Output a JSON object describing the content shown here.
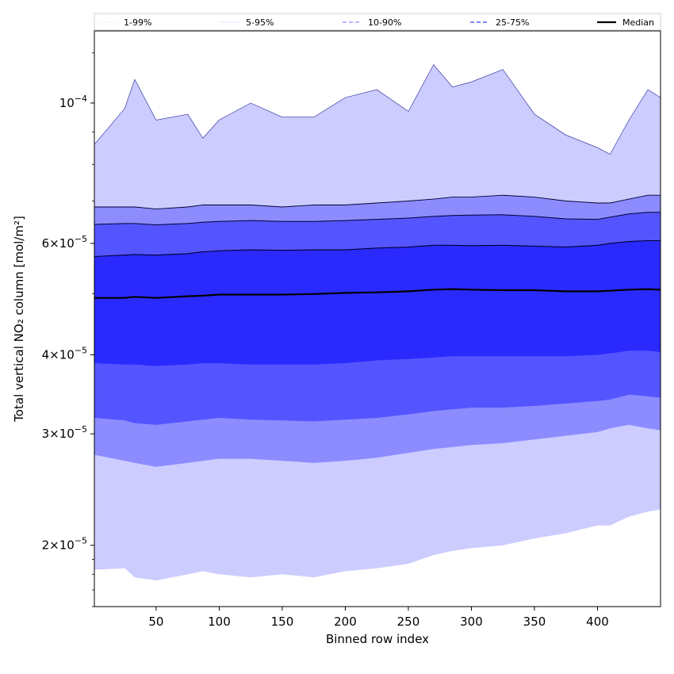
{
  "chart_data": {
    "type": "area",
    "xlabel": "Binned row index",
    "ylabel": "Total vertical NO₂ column [mol/m²]",
    "y_scale": "log",
    "xlim": [
      1,
      450
    ],
    "ylim": [
      1.6e-05,
      0.00013
    ],
    "x_ticks": [
      50,
      100,
      150,
      200,
      250,
      300,
      350,
      400
    ],
    "x_tick_labels": [
      "50",
      "100",
      "150",
      "200",
      "250",
      "300",
      "350",
      "400"
    ],
    "y_ticks": [
      {
        "value": 0.0001,
        "mantissa": "",
        "exponent": "−4"
      },
      {
        "value": 6e-05,
        "mantissa": "6",
        "exponent": "−5"
      },
      {
        "value": 4e-05,
        "mantissa": "4",
        "exponent": "−5"
      },
      {
        "value": 3e-05,
        "mantissa": "3",
        "exponent": "−5"
      },
      {
        "value": 2e-05,
        "mantissa": "2",
        "exponent": "−5"
      }
    ],
    "grid": false,
    "legend_position": "top",
    "legend": [
      {
        "label": "1-99%",
        "color": "#d8d8ff",
        "style": "dotted"
      },
      {
        "label": "5-95%",
        "color": "#b4b4ff",
        "style": "dotted"
      },
      {
        "label": "10-90%",
        "color": "#8c8cff",
        "style": "dashed"
      },
      {
        "label": "25-75%",
        "color": "#5a5aff",
        "style": "dashed"
      },
      {
        "label": "Median",
        "color": "#000000",
        "style": "solid"
      }
    ],
    "x": [
      1,
      25,
      33,
      50,
      75,
      87,
      100,
      125,
      150,
      175,
      200,
      225,
      250,
      270,
      285,
      300,
      325,
      350,
      375,
      400,
      410,
      425,
      440,
      450
    ],
    "bands": [
      {
        "name": "1-99%",
        "color": "#ccccff",
        "lower": [
          1.83e-05,
          1.84e-05,
          1.78e-05,
          1.76e-05,
          1.8e-05,
          1.82e-05,
          1.8e-05,
          1.78e-05,
          1.8e-05,
          1.78e-05,
          1.82e-05,
          1.84e-05,
          1.87e-05,
          1.93e-05,
          1.96e-05,
          1.98e-05,
          2e-05,
          2.05e-05,
          2.09e-05,
          2.15e-05,
          2.15e-05,
          2.22e-05,
          2.26e-05,
          2.28e-05
        ],
        "upper": [
          8.6e-05,
          9.8e-05,
          0.000109,
          9.4e-05,
          9.6e-05,
          8.8e-05,
          9.4e-05,
          0.0001,
          9.5e-05,
          9.5e-05,
          0.000102,
          0.000105,
          9.7e-05,
          0.000115,
          0.000106,
          0.000108,
          0.000113,
          9.6e-05,
          8.9e-05,
          8.5e-05,
          8.3e-05,
          9.4e-05,
          0.000105,
          0.000102
        ]
      },
      {
        "name": "5-95%",
        "color": "#8c8cff",
        "lower": [
          2.78e-05,
          2.72e-05,
          2.7e-05,
          2.66e-05,
          2.7e-05,
          2.72e-05,
          2.74e-05,
          2.74e-05,
          2.72e-05,
          2.7e-05,
          2.72e-05,
          2.75e-05,
          2.8e-05,
          2.84e-05,
          2.86e-05,
          2.88e-05,
          2.9e-05,
          2.94e-05,
          2.98e-05,
          3.02e-05,
          3.06e-05,
          3.1e-05,
          3.06e-05,
          3.04e-05
        ],
        "upper": [
          6.85e-05,
          6.85e-05,
          6.85e-05,
          6.8e-05,
          6.85e-05,
          6.9e-05,
          6.9e-05,
          6.9e-05,
          6.85e-05,
          6.9e-05,
          6.9e-05,
          6.95e-05,
          7e-05,
          7.05e-05,
          7.1e-05,
          7.1e-05,
          7.15e-05,
          7.1e-05,
          7e-05,
          6.95e-05,
          6.95e-05,
          7.05e-05,
          7.15e-05,
          7.15e-05
        ]
      },
      {
        "name": "10-90%",
        "color": "#5555ff",
        "lower": [
          3.18e-05,
          3.15e-05,
          3.12e-05,
          3.1e-05,
          3.14e-05,
          3.16e-05,
          3.18e-05,
          3.16e-05,
          3.15e-05,
          3.14e-05,
          3.16e-05,
          3.18e-05,
          3.22e-05,
          3.26e-05,
          3.28e-05,
          3.3e-05,
          3.3e-05,
          3.32e-05,
          3.35e-05,
          3.38e-05,
          3.4e-05,
          3.46e-05,
          3.44e-05,
          3.42e-05
        ],
        "upper": [
          6.43e-05,
          6.45e-05,
          6.45e-05,
          6.42e-05,
          6.45e-05,
          6.48e-05,
          6.5e-05,
          6.52e-05,
          6.5e-05,
          6.5e-05,
          6.52e-05,
          6.55e-05,
          6.58e-05,
          6.62e-05,
          6.64e-05,
          6.65e-05,
          6.66e-05,
          6.62e-05,
          6.56e-05,
          6.55e-05,
          6.6e-05,
          6.68e-05,
          6.72e-05,
          6.72e-05
        ]
      },
      {
        "name": "25-75%",
        "color": "#2a2aff",
        "lower": [
          3.88e-05,
          3.86e-05,
          3.86e-05,
          3.84e-05,
          3.86e-05,
          3.88e-05,
          3.88e-05,
          3.86e-05,
          3.86e-05,
          3.86e-05,
          3.88e-05,
          3.92e-05,
          3.94e-05,
          3.96e-05,
          3.98e-05,
          3.98e-05,
          3.98e-05,
          3.98e-05,
          3.98e-05,
          4e-05,
          4.02e-05,
          4.06e-05,
          4.06e-05,
          4.04e-05
        ],
        "upper": [
          5.72e-05,
          5.75e-05,
          5.76e-05,
          5.75e-05,
          5.78e-05,
          5.82e-05,
          5.84e-05,
          5.86e-05,
          5.85e-05,
          5.86e-05,
          5.86e-05,
          5.9e-05,
          5.92e-05,
          5.96e-05,
          5.96e-05,
          5.95e-05,
          5.96e-05,
          5.94e-05,
          5.92e-05,
          5.96e-05,
          6e-05,
          6.04e-05,
          6.06e-05,
          6.06e-05
        ]
      }
    ],
    "series": [
      {
        "name": "Median",
        "color": "#000000",
        "values": [
          4.92e-05,
          4.92e-05,
          4.94e-05,
          4.92e-05,
          4.95e-05,
          4.96e-05,
          4.98e-05,
          4.98e-05,
          4.98e-05,
          4.99e-05,
          5.01e-05,
          5.02e-05,
          5.04e-05,
          5.07e-05,
          5.08e-05,
          5.07e-05,
          5.06e-05,
          5.06e-05,
          5.04e-05,
          5.04e-05,
          5.05e-05,
          5.07e-05,
          5.08e-05,
          5.07e-05
        ]
      }
    ]
  }
}
